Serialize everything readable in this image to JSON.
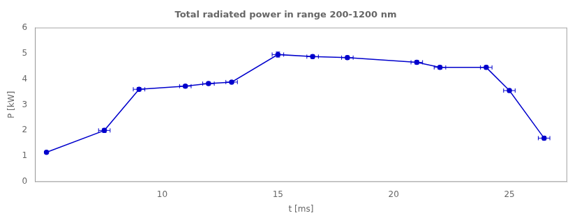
{
  "chart_data": {
    "type": "line",
    "title": "Total radiated power in range 200-1200 nm",
    "xlabel": "t [ms]",
    "ylabel": "P [kW]",
    "x": [
      5.0,
      7.5,
      9.0,
      11.0,
      12.0,
      13.0,
      15.0,
      16.5,
      18.0,
      21.0,
      22.0,
      24.0,
      25.0,
      26.5
    ],
    "series": [
      {
        "values": [
          1.15,
          2.0,
          3.6,
          3.72,
          3.82,
          3.88,
          4.95,
          4.87,
          4.83,
          4.65,
          4.45,
          4.45,
          3.55,
          1.7
        ],
        "xerr": [
          0.0,
          0.25,
          0.25,
          0.25,
          0.25,
          0.25,
          0.25,
          0.25,
          0.25,
          0.25,
          0.25,
          0.25,
          0.25,
          0.25
        ],
        "yerr": [
          0.0,
          0.08,
          0.07,
          0.06,
          0.06,
          0.06,
          0.1,
          0.07,
          0.07,
          0.07,
          0.07,
          0.07,
          0.07,
          0.07
        ],
        "color": "#0000cc",
        "marker": "o",
        "line_style": "solid"
      }
    ],
    "xlim": [
      4.5,
      27.5
    ],
    "ylim": [
      0,
      6
    ],
    "xticks": [
      10,
      15,
      20,
      25
    ],
    "yticks": [
      0,
      1,
      2,
      3,
      4,
      5,
      6
    ],
    "grid": false
  }
}
